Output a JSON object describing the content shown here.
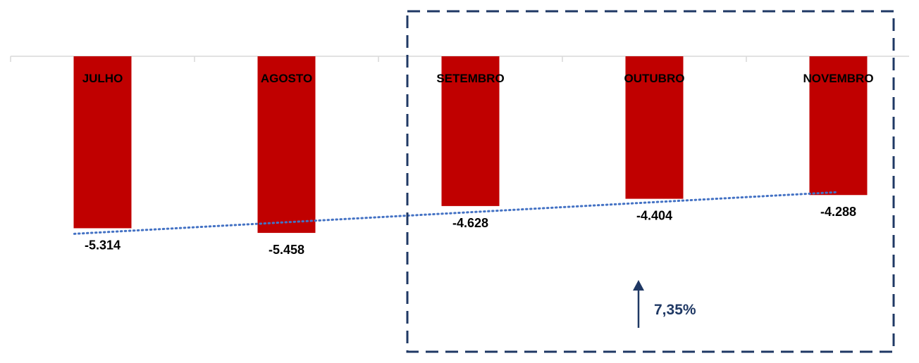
{
  "chart_data": {
    "type": "bar",
    "categories": [
      "JULHO",
      "AGOSTO",
      "SETEMBRO",
      "OUTUBRO",
      "NOVEMBRO"
    ],
    "values": [
      -5.314,
      -5.458,
      -4.628,
      -4.404,
      -4.288
    ],
    "value_labels": [
      "-5.314",
      "-5.458",
      "-4.628",
      "-4.404",
      "-4.288"
    ],
    "title": "",
    "xlabel": "",
    "ylabel": "",
    "ylim": [
      -10,
      0
    ],
    "trendline": {
      "type": "linear",
      "style": "dotted"
    },
    "highlight": {
      "categories": [
        "SETEMBRO",
        "OUTUBRO",
        "NOVEMBRO"
      ],
      "style": "dashed box"
    },
    "annotation": {
      "text": "7,35%",
      "icon": "arrow-up-icon"
    },
    "grid": false,
    "legend": "none"
  },
  "colors": {
    "bar": "#C00000",
    "trendline": "#4472C4",
    "highlight_box": "#1F3864",
    "axis": "#D9D9D9",
    "annotation": "#1F3864"
  }
}
